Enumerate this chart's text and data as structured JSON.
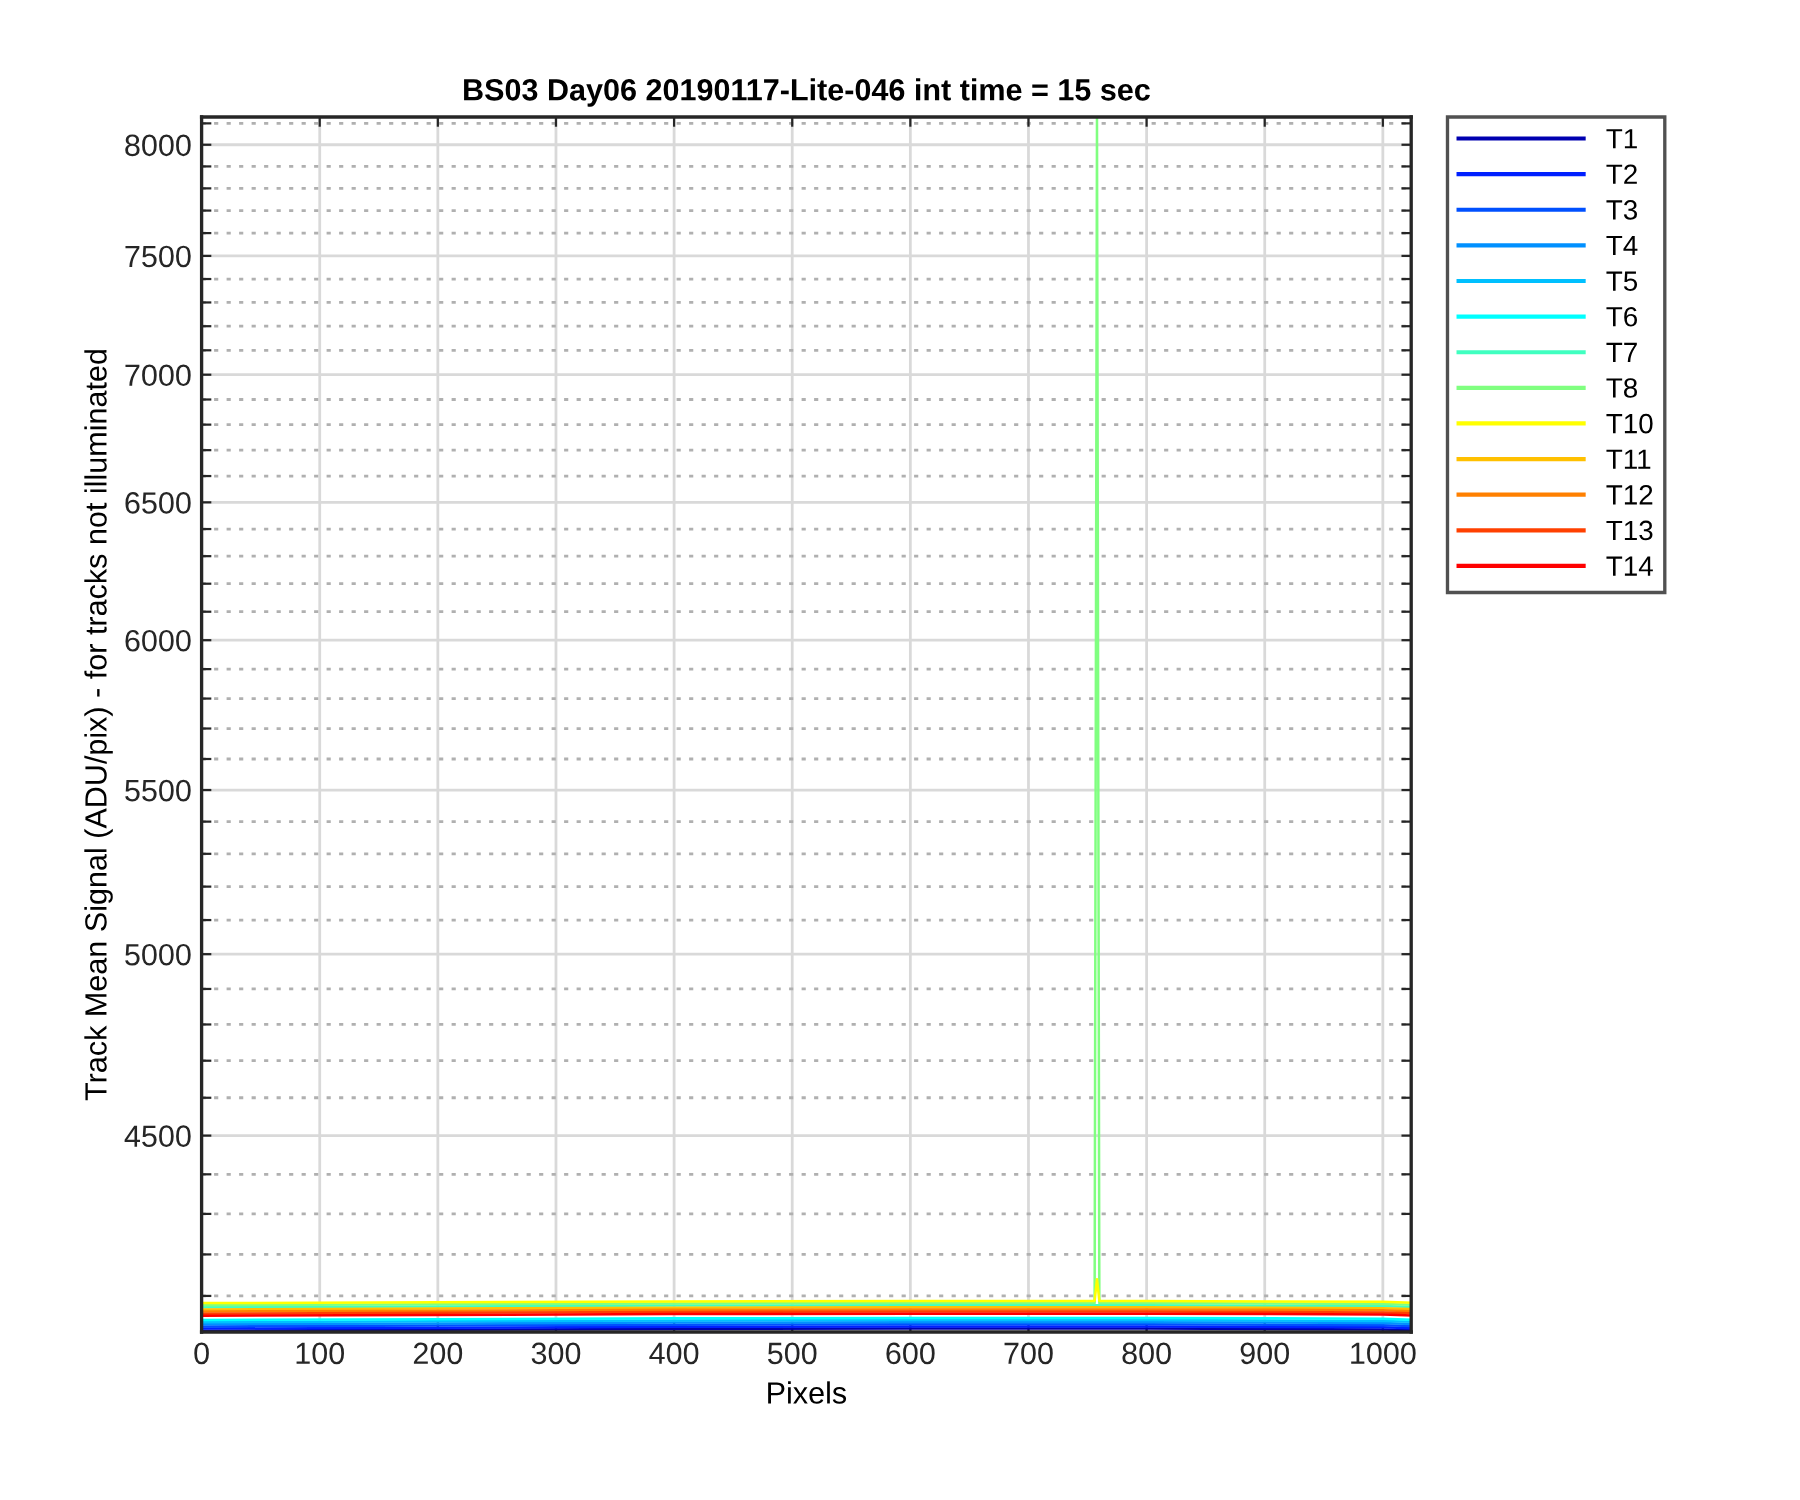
{
  "chart_data": {
    "type": "line",
    "title": "BS03 Day06 20190117-Lite-046 int time = 15 sec",
    "xlabel": "Pixels",
    "ylabel": "Track Mean Signal (ADU/pix) - for tracks not illuminated",
    "log": "y",
    "grid": true,
    "legend": "right",
    "line_style": "solid",
    "marker": "none",
    "xlim": [
      0,
      1024
    ],
    "xticks": [
      0,
      100,
      200,
      300,
      400,
      500,
      600,
      700,
      800,
      900,
      1000
    ],
    "ylim": [
      4015,
      8130
    ],
    "yticks": [
      {
        "value": 4100,
        "label": null
      },
      {
        "value": 4200,
        "label": null
      },
      {
        "value": 4300,
        "label": null
      },
      {
        "value": 4400,
        "label": null
      },
      4500,
      {
        "value": 4600,
        "label": null
      },
      {
        "value": 4700,
        "label": null
      },
      {
        "value": 4800,
        "label": null
      },
      {
        "value": 4900,
        "label": null
      },
      5000,
      {
        "value": 5100,
        "label": null
      },
      {
        "value": 5200,
        "label": null
      },
      {
        "value": 5300,
        "label": null
      },
      {
        "value": 5400,
        "label": null
      },
      5500,
      {
        "value": 5600,
        "label": null
      },
      {
        "value": 5700,
        "label": null
      },
      {
        "value": 5800,
        "label": null
      },
      {
        "value": 5900,
        "label": null
      },
      6000,
      {
        "value": 6100,
        "label": null
      },
      {
        "value": 6200,
        "label": null
      },
      {
        "value": 6300,
        "label": null
      },
      {
        "value": 6400,
        "label": null
      },
      6500,
      {
        "value": 6600,
        "label": null
      },
      {
        "value": 6700,
        "label": null
      },
      {
        "value": 6800,
        "label": null
      },
      {
        "value": 6900,
        "label": null
      },
      7000,
      {
        "value": 7100,
        "label": null
      },
      {
        "value": 7200,
        "label": null
      },
      {
        "value": 7300,
        "label": null
      },
      {
        "value": 7400,
        "label": null
      },
      7500,
      {
        "value": 7600,
        "label": null
      },
      {
        "value": 7700,
        "label": null
      },
      {
        "value": 7800,
        "label": null
      },
      {
        "value": 7900,
        "label": null
      },
      8000,
      {
        "value": 8100,
        "label": null
      }
    ],
    "series": [
      {
        "name": "T1",
        "color": "#0000b0",
        "x": [
          0,
          200,
          400,
          600,
          800,
          1000,
          1024
        ],
        "values": [
          4018,
          4020,
          4022,
          4023,
          4023,
          4021,
          4019
        ]
      },
      {
        "name": "T2",
        "color": "#0020ff",
        "x": [
          0,
          200,
          400,
          600,
          800,
          1000,
          1024
        ],
        "values": [
          4023,
          4025,
          4027,
          4028,
          4028,
          4026,
          4024
        ]
      },
      {
        "name": "T3",
        "color": "#0050ff",
        "x": [
          0,
          200,
          400,
          600,
          800,
          1000,
          1024
        ],
        "values": [
          4028,
          4030,
          4032,
          4033,
          4033,
          4031,
          4029
        ]
      },
      {
        "name": "T4",
        "color": "#0090ff",
        "x": [
          0,
          200,
          400,
          600,
          800,
          1000,
          1024
        ],
        "values": [
          4033,
          4035,
          4037,
          4038,
          4038,
          4036,
          4034
        ]
      },
      {
        "name": "T5",
        "color": "#00c0ff",
        "x": [
          0,
          200,
          400,
          600,
          800,
          1000,
          1024
        ],
        "values": [
          4038,
          4040,
          4042,
          4043,
          4043,
          4041,
          4039
        ]
      },
      {
        "name": "T6",
        "color": "#00ffff",
        "x": [
          0,
          200,
          400,
          600,
          800,
          1000,
          1024
        ],
        "values": [
          4043,
          4045,
          4047,
          4048,
          4048,
          4046,
          4044
        ]
      },
      {
        "name": "T7",
        "color": "#40ffc0",
        "x": [
          0,
          200,
          400,
          600,
          800,
          1000,
          1024
        ],
        "values": [
          4073,
          4075,
          4077,
          4078,
          4078,
          4076,
          4074
        ]
      },
      {
        "name": "T8",
        "color": "#80ff80",
        "x": [
          0,
          200,
          400,
          600,
          756,
          758,
          760,
          800,
          1000,
          1024
        ],
        "values": [
          4078,
          4080,
          4082,
          4083,
          4083,
          8130,
          4083,
          4083,
          4081,
          4079
        ]
      },
      {
        "name": "T10",
        "color": "#ffff00",
        "x": [
          0,
          200,
          400,
          600,
          756,
          758,
          760,
          800,
          1000,
          1024
        ],
        "values": [
          4083,
          4085,
          4087,
          4088,
          4088,
          4140,
          4088,
          4088,
          4086,
          4084
        ]
      },
      {
        "name": "T11",
        "color": "#ffc000",
        "x": [
          0,
          200,
          400,
          600,
          800,
          1000,
          1024
        ],
        "values": [
          4068,
          4070,
          4072,
          4073,
          4073,
          4071,
          4069
        ]
      },
      {
        "name": "T12",
        "color": "#ff8000",
        "x": [
          0,
          200,
          400,
          600,
          800,
          1000,
          1024
        ],
        "values": [
          4063,
          4065,
          4067,
          4068,
          4068,
          4066,
          4064
        ]
      },
      {
        "name": "T13",
        "color": "#ff4000",
        "x": [
          0,
          200,
          400,
          600,
          800,
          1000,
          1024
        ],
        "values": [
          4058,
          4060,
          4062,
          4063,
          4063,
          4061,
          4059
        ]
      },
      {
        "name": "T14",
        "color": "#ff0000",
        "x": [
          0,
          200,
          400,
          600,
          800,
          1000,
          1024
        ],
        "values": [
          4053,
          4055,
          4057,
          4058,
          4058,
          4056,
          4054
        ]
      }
    ]
  }
}
